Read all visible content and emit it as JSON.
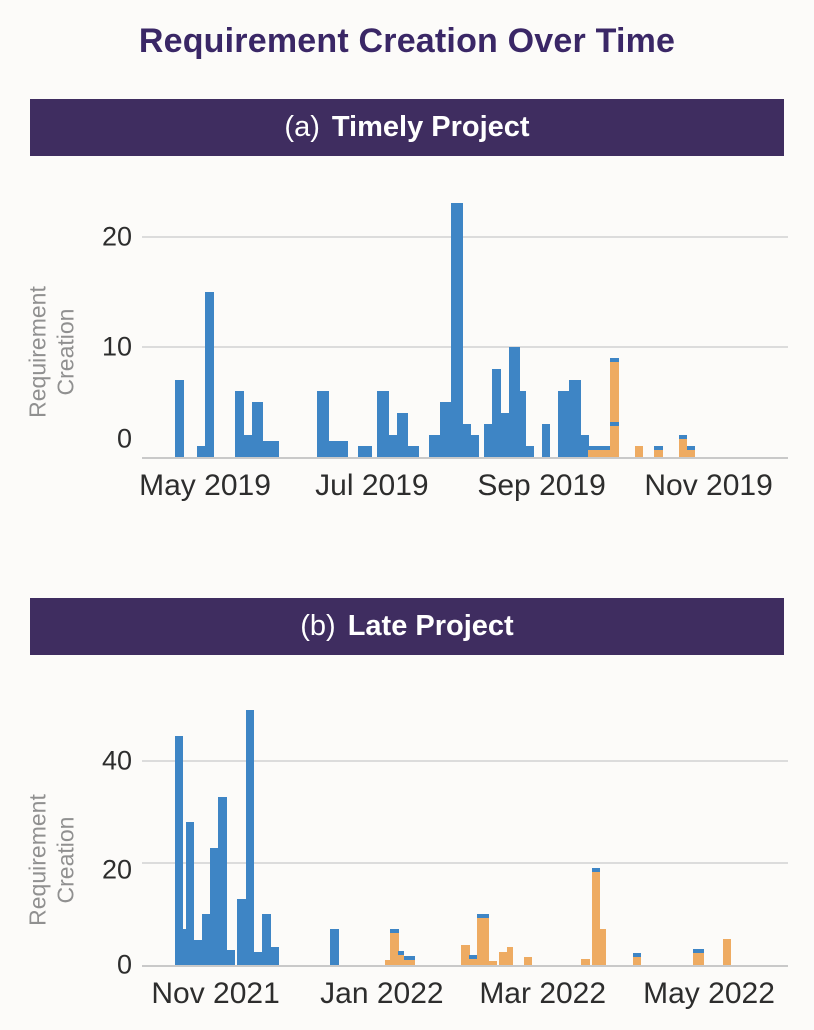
{
  "page": {
    "title": "Requirement Creation Over Time"
  },
  "colors": {
    "background": "#fcfbf9",
    "banner_bg": "#3f2d60",
    "title_text": "#3a2766",
    "blue": "#3e85c5",
    "orange": "#eeab62",
    "gridline": "#dcdcdc",
    "axis_line": "#c9c9c9",
    "tick_text": "#2d2d2d",
    "axis_title_text": "#909090"
  },
  "chart_data": [
    {
      "type": "bar",
      "panel_label": "(a)",
      "title": "Timely Project",
      "ylabel": "Requirement Creation",
      "y_axis_title_lines": [
        "Requirement",
        "Creation"
      ],
      "legend": "none",
      "grid": true,
      "x_domain": [
        "2019-04-08",
        "2019-11-30"
      ],
      "y_max": 24.4,
      "y_ticks": [
        {
          "value": 0,
          "label": "0",
          "dy": -18
        },
        {
          "value": 10,
          "label": "10"
        },
        {
          "value": 20,
          "label": "20"
        }
      ],
      "x_ticks": [
        {
          "date": "2019-05-01",
          "label": "May 2019"
        },
        {
          "date": "2019-07-01",
          "label": "Jul 2019"
        },
        {
          "date": "2019-09-01",
          "label": "Sep 2019"
        },
        {
          "date": "2019-11-01",
          "label": "Nov 2019"
        }
      ],
      "bars": [
        {
          "start": "2019-04-20",
          "end": "2019-04-23",
          "value": 7,
          "color": "blue"
        },
        {
          "start": "2019-04-28",
          "end": "2019-05-01",
          "value": 1,
          "color": "blue"
        },
        {
          "start": "2019-05-01",
          "end": "2019-05-04",
          "value": 15,
          "color": "blue"
        },
        {
          "start": "2019-05-12",
          "end": "2019-05-15",
          "value": 6,
          "color": "blue"
        },
        {
          "start": "2019-05-15",
          "end": "2019-05-18",
          "value": 2,
          "color": "blue"
        },
        {
          "start": "2019-05-18",
          "end": "2019-05-22",
          "value": 5,
          "color": "blue"
        },
        {
          "start": "2019-05-22",
          "end": "2019-05-28",
          "value": 1.5,
          "color": "blue"
        },
        {
          "start": "2019-06-11",
          "end": "2019-06-15",
          "value": 6,
          "color": "blue"
        },
        {
          "start": "2019-06-15",
          "end": "2019-06-22",
          "value": 1.5,
          "color": "blue"
        },
        {
          "start": "2019-06-26",
          "end": "2019-07-01",
          "value": 1,
          "color": "blue"
        },
        {
          "start": "2019-07-03",
          "end": "2019-07-07",
          "value": 6,
          "color": "blue"
        },
        {
          "start": "2019-07-07",
          "end": "2019-07-10",
          "value": 2,
          "color": "blue"
        },
        {
          "start": "2019-07-10",
          "end": "2019-07-14",
          "value": 4,
          "color": "blue"
        },
        {
          "start": "2019-07-14",
          "end": "2019-07-18",
          "value": 1,
          "color": "blue"
        },
        {
          "start": "2019-07-22",
          "end": "2019-07-26",
          "value": 2,
          "color": "blue"
        },
        {
          "start": "2019-07-26",
          "end": "2019-07-30",
          "value": 5,
          "color": "blue"
        },
        {
          "start": "2019-07-30",
          "end": "2019-08-03",
          "value": 23,
          "color": "blue"
        },
        {
          "start": "2019-08-03",
          "end": "2019-08-06",
          "value": 3,
          "color": "blue"
        },
        {
          "start": "2019-08-06",
          "end": "2019-08-09",
          "value": 2,
          "color": "blue"
        },
        {
          "start": "2019-08-11",
          "end": "2019-08-14",
          "value": 3,
          "color": "blue"
        },
        {
          "start": "2019-08-14",
          "end": "2019-08-17",
          "value": 8,
          "color": "blue"
        },
        {
          "start": "2019-08-17",
          "end": "2019-08-20",
          "value": 4,
          "color": "blue"
        },
        {
          "start": "2019-08-20",
          "end": "2019-08-24",
          "value": 10,
          "color": "blue"
        },
        {
          "start": "2019-08-24",
          "end": "2019-08-26",
          "value": 6,
          "color": "blue"
        },
        {
          "start": "2019-08-26",
          "end": "2019-08-29",
          "value": 1,
          "color": "blue"
        },
        {
          "start": "2019-09-01",
          "end": "2019-09-04",
          "value": 3,
          "color": "blue"
        },
        {
          "start": "2019-09-07",
          "end": "2019-09-11",
          "value": 6,
          "color": "blue"
        },
        {
          "start": "2019-09-11",
          "end": "2019-09-15",
          "value": 7,
          "color": "blue"
        },
        {
          "start": "2019-09-15",
          "end": "2019-09-18",
          "value": 2,
          "color": "blue"
        },
        {
          "start": "2019-09-18",
          "end": "2019-09-26",
          "value": 1,
          "color": "orange",
          "blue_cap": true
        },
        {
          "start": "2019-09-26",
          "end": "2019-09-29",
          "value": 9,
          "color": "orange",
          "blue_cap": true,
          "blue_mark": 3
        },
        {
          "start": "2019-10-05",
          "end": "2019-10-08",
          "value": 1,
          "color": "orange"
        },
        {
          "start": "2019-10-12",
          "end": "2019-10-15",
          "value": 1,
          "color": "orange",
          "blue_cap": true
        },
        {
          "start": "2019-10-21",
          "end": "2019-10-24",
          "value": 2,
          "color": "orange",
          "blue_cap": true
        },
        {
          "start": "2019-10-24",
          "end": "2019-10-27",
          "value": 1,
          "color": "orange",
          "blue_cap": true
        }
      ]
    },
    {
      "type": "bar",
      "panel_label": "(b)",
      "title": "Late Project",
      "ylabel": "Requirement Creation",
      "y_axis_title_lines": [
        "Requirement",
        "Creation"
      ],
      "legend": "none",
      "grid": true,
      "x_domain": [
        "2021-10-05",
        "2022-05-30"
      ],
      "y_max": 52,
      "y_ticks": [
        {
          "value": 0,
          "label": "0"
        },
        {
          "value": 20,
          "label": "20",
          "dy": 7
        },
        {
          "value": 40,
          "label": "40"
        }
      ],
      "x_ticks": [
        {
          "date": "2021-11-01",
          "label": "Nov 2021"
        },
        {
          "date": "2022-01-01",
          "label": "Jan 2022"
        },
        {
          "date": "2022-03-01",
          "label": "Mar 2022"
        },
        {
          "date": "2022-05-01",
          "label": "May 2022"
        }
      ],
      "bars": [
        {
          "start": "2021-10-17",
          "end": "2021-10-20",
          "value": 45,
          "color": "blue"
        },
        {
          "start": "2021-10-20",
          "end": "2021-10-21",
          "value": 7,
          "color": "blue"
        },
        {
          "start": "2021-10-21",
          "end": "2021-10-24",
          "value": 28,
          "color": "blue"
        },
        {
          "start": "2021-10-24",
          "end": "2021-10-27",
          "value": 5,
          "color": "blue"
        },
        {
          "start": "2021-10-27",
          "end": "2021-10-30",
          "value": 10,
          "color": "blue"
        },
        {
          "start": "2021-10-30",
          "end": "2021-11-02",
          "value": 23,
          "color": "blue"
        },
        {
          "start": "2021-11-02",
          "end": "2021-11-05",
          "value": 33,
          "color": "blue"
        },
        {
          "start": "2021-11-05",
          "end": "2021-11-08",
          "value": 3,
          "color": "blue"
        },
        {
          "start": "2021-11-09",
          "end": "2021-11-12",
          "value": 13,
          "color": "blue"
        },
        {
          "start": "2021-11-12",
          "end": "2021-11-15",
          "value": 50,
          "color": "blue"
        },
        {
          "start": "2021-11-15",
          "end": "2021-11-18",
          "value": 2.5,
          "color": "blue"
        },
        {
          "start": "2021-11-18",
          "end": "2021-11-21",
          "value": 10,
          "color": "blue"
        },
        {
          "start": "2021-11-21",
          "end": "2021-11-24",
          "value": 3.5,
          "color": "blue"
        },
        {
          "start": "2021-12-13",
          "end": "2021-12-16",
          "value": 7,
          "color": "blue"
        },
        {
          "start": "2022-01-02",
          "end": "2022-01-04",
          "value": 0.9,
          "color": "orange"
        },
        {
          "start": "2022-01-04",
          "end": "2022-01-07",
          "value": 7,
          "color": "orange",
          "blue_cap": true
        },
        {
          "start": "2022-01-07",
          "end": "2022-01-09",
          "value": 2.8,
          "color": "orange",
          "blue_cap": true
        },
        {
          "start": "2022-01-09",
          "end": "2022-01-13",
          "value": 1.8,
          "color": "orange",
          "blue_cap": true
        },
        {
          "start": "2022-01-30",
          "end": "2022-02-02",
          "value": 4,
          "color": "orange"
        },
        {
          "start": "2022-02-02",
          "end": "2022-02-05",
          "value": 2,
          "color": "orange",
          "blue_cap": true
        },
        {
          "start": "2022-02-05",
          "end": "2022-02-09",
          "value": 10,
          "color": "orange",
          "blue_cap": true
        },
        {
          "start": "2022-02-09",
          "end": "2022-02-12",
          "value": 0.8,
          "color": "orange"
        },
        {
          "start": "2022-02-13",
          "end": "2022-02-16",
          "value": 2.5,
          "color": "orange"
        },
        {
          "start": "2022-02-16",
          "end": "2022-02-18",
          "value": 3.5,
          "color": "orange"
        },
        {
          "start": "2022-02-22",
          "end": "2022-02-25",
          "value": 1.6,
          "color": "orange"
        },
        {
          "start": "2022-03-15",
          "end": "2022-03-18",
          "value": 1.2,
          "color": "orange"
        },
        {
          "start": "2022-03-19",
          "end": "2022-03-22",
          "value": 19,
          "color": "orange",
          "blue_cap": true
        },
        {
          "start": "2022-03-22",
          "end": "2022-03-24",
          "value": 7,
          "color": "orange"
        },
        {
          "start": "2022-04-03",
          "end": "2022-04-06",
          "value": 2.3,
          "color": "orange",
          "blue_cap": true
        },
        {
          "start": "2022-04-25",
          "end": "2022-04-29",
          "value": 3.2,
          "color": "orange",
          "blue_cap": true
        },
        {
          "start": "2022-05-06",
          "end": "2022-05-09",
          "value": 5.2,
          "color": "orange"
        }
      ]
    }
  ]
}
